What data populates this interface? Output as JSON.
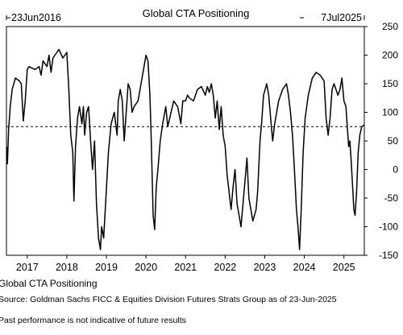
{
  "chart_data": {
    "type": "line",
    "title": "Global CTA Positioning",
    "start_label": "23Jun2016",
    "end_label": "7Jul2025",
    "ylim": [
      -150,
      250
    ],
    "yticks": [
      250,
      200,
      150,
      100,
      50,
      0,
      -50,
      -100,
      -150
    ],
    "xlim": [
      2016.475,
      2025.515
    ],
    "xticks": [
      {
        "label": "2017",
        "x": 2017.0
      },
      {
        "label": "2018",
        "x": 2018.0
      },
      {
        "label": "2019",
        "x": 2019.0
      },
      {
        "label": "2020",
        "x": 2020.0
      },
      {
        "label": "2021",
        "x": 2021.0
      },
      {
        "label": "2022",
        "x": 2022.0
      },
      {
        "label": "2023",
        "x": 2023.0
      },
      {
        "label": "2024",
        "x": 2024.0
      },
      {
        "label": "2025",
        "x": 2025.0
      }
    ],
    "reference_line": {
      "y": 75,
      "style": "dashed"
    },
    "series": [
      {
        "name": "Global CTA Positioning",
        "color": "#000000",
        "points": [
          [
            2016.48,
            40
          ],
          [
            2016.5,
            10
          ],
          [
            2016.53,
            70
          ],
          [
            2016.57,
            110
          ],
          [
            2016.62,
            140
          ],
          [
            2016.7,
            160
          ],
          [
            2016.8,
            155
          ],
          [
            2016.85,
            150
          ],
          [
            2016.9,
            85
          ],
          [
            2016.95,
            120
          ],
          [
            2017.0,
            175
          ],
          [
            2017.05,
            180
          ],
          [
            2017.1,
            178
          ],
          [
            2017.2,
            175
          ],
          [
            2017.3,
            180
          ],
          [
            2017.35,
            165
          ],
          [
            2017.4,
            190
          ],
          [
            2017.5,
            180
          ],
          [
            2017.55,
            200
          ],
          [
            2017.6,
            170
          ],
          [
            2017.65,
            195
          ],
          [
            2017.75,
            205
          ],
          [
            2017.8,
            210
          ],
          [
            2017.9,
            195
          ],
          [
            2018.0,
            205
          ],
          [
            2018.05,
            140
          ],
          [
            2018.1,
            60
          ],
          [
            2018.15,
            30
          ],
          [
            2018.18,
            -55
          ],
          [
            2018.22,
            40
          ],
          [
            2018.27,
            90
          ],
          [
            2018.32,
            110
          ],
          [
            2018.38,
            80
          ],
          [
            2018.42,
            110
          ],
          [
            2018.45,
            60
          ],
          [
            2018.5,
            100
          ],
          [
            2018.55,
            110
          ],
          [
            2018.6,
            50
          ],
          [
            2018.65,
            0
          ],
          [
            2018.7,
            50
          ],
          [
            2018.75,
            -60
          ],
          [
            2018.8,
            -120
          ],
          [
            2018.85,
            -140
          ],
          [
            2018.88,
            -100
          ],
          [
            2018.93,
            -120
          ],
          [
            2018.98,
            -60
          ],
          [
            2019.05,
            30
          ],
          [
            2019.12,
            80
          ],
          [
            2019.2,
            100
          ],
          [
            2019.27,
            60
          ],
          [
            2019.3,
            120
          ],
          [
            2019.35,
            140
          ],
          [
            2019.4,
            120
          ],
          [
            2019.45,
            50
          ],
          [
            2019.5,
            100
          ],
          [
            2019.55,
            150
          ],
          [
            2019.6,
            140
          ],
          [
            2019.65,
            100
          ],
          [
            2019.7,
            110
          ],
          [
            2019.8,
            120
          ],
          [
            2019.9,
            160
          ],
          [
            2019.95,
            180
          ],
          [
            2020.0,
            200
          ],
          [
            2020.05,
            190
          ],
          [
            2020.1,
            130
          ],
          [
            2020.13,
            60
          ],
          [
            2020.18,
            -80
          ],
          [
            2020.22,
            -105
          ],
          [
            2020.26,
            -30
          ],
          [
            2020.3,
            0
          ],
          [
            2020.36,
            50
          ],
          [
            2020.42,
            80
          ],
          [
            2020.5,
            110
          ],
          [
            2020.55,
            75
          ],
          [
            2020.6,
            90
          ],
          [
            2020.7,
            120
          ],
          [
            2020.8,
            110
          ],
          [
            2020.88,
            80
          ],
          [
            2020.93,
            120
          ],
          [
            2021.0,
            120
          ],
          [
            2021.05,
            130
          ],
          [
            2021.1,
            125
          ],
          [
            2021.2,
            120
          ],
          [
            2021.3,
            140
          ],
          [
            2021.4,
            145
          ],
          [
            2021.5,
            130
          ],
          [
            2021.55,
            145
          ],
          [
            2021.6,
            135
          ],
          [
            2021.65,
            150
          ],
          [
            2021.7,
            130
          ],
          [
            2021.75,
            90
          ],
          [
            2021.8,
            120
          ],
          [
            2021.85,
            70
          ],
          [
            2021.9,
            110
          ],
          [
            2021.95,
            60
          ],
          [
            2022.0,
            40
          ],
          [
            2022.05,
            -10
          ],
          [
            2022.1,
            -40
          ],
          [
            2022.15,
            -70
          ],
          [
            2022.2,
            -30
          ],
          [
            2022.25,
            0
          ],
          [
            2022.3,
            -60
          ],
          [
            2022.35,
            -80
          ],
          [
            2022.4,
            -100
          ],
          [
            2022.45,
            -60
          ],
          [
            2022.55,
            20
          ],
          [
            2022.6,
            -50
          ],
          [
            2022.7,
            -90
          ],
          [
            2022.78,
            -70
          ],
          [
            2022.82,
            -40
          ],
          [
            2022.88,
            50
          ],
          [
            2022.92,
            80
          ],
          [
            2022.97,
            130
          ],
          [
            2023.05,
            150
          ],
          [
            2023.1,
            130
          ],
          [
            2023.15,
            90
          ],
          [
            2023.2,
            50
          ],
          [
            2023.25,
            80
          ],
          [
            2023.35,
            120
          ],
          [
            2023.45,
            140
          ],
          [
            2023.55,
            150
          ],
          [
            2023.6,
            130
          ],
          [
            2023.65,
            100
          ],
          [
            2023.7,
            60
          ],
          [
            2023.75,
            0
          ],
          [
            2023.8,
            -70
          ],
          [
            2023.84,
            -100
          ],
          [
            2023.88,
            -140
          ],
          [
            2023.92,
            -70
          ],
          [
            2023.97,
            30
          ],
          [
            2024.02,
            90
          ],
          [
            2024.1,
            130
          ],
          [
            2024.2,
            160
          ],
          [
            2024.3,
            170
          ],
          [
            2024.4,
            165
          ],
          [
            2024.5,
            155
          ],
          [
            2024.55,
            90
          ],
          [
            2024.6,
            60
          ],
          [
            2024.65,
            90
          ],
          [
            2024.7,
            140
          ],
          [
            2024.75,
            150
          ],
          [
            2024.85,
            130
          ],
          [
            2024.9,
            140
          ],
          [
            2024.95,
            160
          ],
          [
            2025.0,
            120
          ],
          [
            2025.05,
            110
          ],
          [
            2025.08,
            80
          ],
          [
            2025.12,
            40
          ],
          [
            2025.15,
            50
          ],
          [
            2025.18,
            20
          ],
          [
            2025.22,
            -30
          ],
          [
            2025.25,
            -70
          ],
          [
            2025.28,
            -80
          ],
          [
            2025.32,
            -40
          ],
          [
            2025.36,
            30
          ],
          [
            2025.4,
            60
          ],
          [
            2025.45,
            75
          ],
          [
            2025.51,
            78
          ]
        ]
      }
    ]
  },
  "footer": {
    "legend_label": "Global CTA Positioning",
    "source": "Source: Goldman Sachs FICC & Equities Division Futures Strats Group as of 23-Jun-2025",
    "disclaimer": "Past performance is not indicative of future results"
  }
}
